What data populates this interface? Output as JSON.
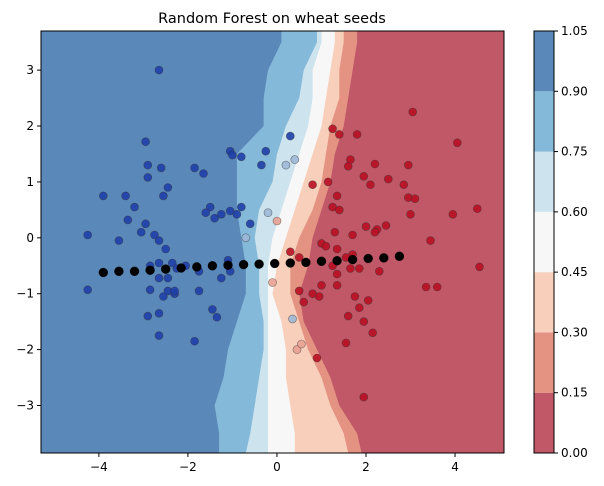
{
  "chart_data": {
    "type": "scatter",
    "title": "Random Forest on wheat seeds",
    "xlim": [
      -5.3,
      5.1
    ],
    "ylim": [
      -3.85,
      3.7
    ],
    "x_ticks": [
      -4,
      -2,
      0,
      2,
      4
    ],
    "x_tick_labels": [
      "−4",
      "−2",
      "0",
      "2",
      "4"
    ],
    "y_ticks": [
      -3,
      -2,
      -1,
      0,
      1,
      2,
      3
    ],
    "y_tick_labels": [
      "−3",
      "−2",
      "−1",
      "0",
      "1",
      "2",
      "3"
    ],
    "grid": false,
    "colorbar": {
      "levels": [
        0.0,
        0.15,
        0.3,
        0.45,
        0.6,
        0.75,
        0.9,
        1.05
      ],
      "tick_labels": [
        "0.00",
        "0.15",
        "0.30",
        "0.45",
        "0.60",
        "0.75",
        "0.90",
        "1.05"
      ],
      "colors": [
        "#c05868",
        "#e49383",
        "#f8cfba",
        "#f7f7f7",
        "#cde3ee",
        "#84b9d9",
        "#5a88b8"
      ]
    },
    "decision_regions": {
      "description_boundaries_y": [
        -3.85,
        -3.5,
        -3,
        -2.5,
        -2,
        -1.5,
        -1,
        -0.5,
        0,
        0.5,
        1,
        1.5,
        2,
        2.5,
        3,
        3.5,
        3.7
      ],
      "b90": [
        -1.3,
        -1.3,
        -1.4,
        -1.2,
        -1.1,
        -0.9,
        -0.7,
        -0.7,
        -0.8,
        -0.9,
        -0.9,
        -0.9,
        -0.3,
        -0.3,
        -0.2,
        0.1,
        0.1
      ],
      "b75": [
        -0.7,
        -0.6,
        -0.5,
        -0.4,
        -0.3,
        -0.3,
        -0.4,
        -0.4,
        -0.5,
        -0.4,
        -0.1,
        0.0,
        0.2,
        0.5,
        0.6,
        0.9,
        0.9
      ],
      "b60": [
        -0.2,
        -0.2,
        -0.2,
        -0.2,
        -0.2,
        -0.2,
        -0.2,
        -0.2,
        -0.1,
        0.1,
        0.3,
        0.5,
        0.7,
        0.8,
        0.8,
        1.0,
        1.0
      ],
      "b45": [
        0.4,
        0.4,
        0.3,
        0.2,
        0.2,
        0.1,
        -0.1,
        0.0,
        0.2,
        0.4,
        0.6,
        0.8,
        1.0,
        1.1,
        1.2,
        1.3,
        1.3
      ],
      "b30": [
        1.6,
        1.5,
        1.2,
        1.0,
        0.7,
        0.5,
        0.3,
        0.3,
        0.5,
        0.8,
        1.0,
        1.1,
        1.2,
        1.4,
        1.4,
        1.5,
        1.5
      ],
      "b15": [
        1.9,
        1.8,
        1.4,
        1.2,
        0.9,
        0.6,
        0.5,
        0.7,
        0.8,
        1.0,
        1.2,
        1.3,
        1.5,
        1.6,
        1.7,
        1.8,
        1.8
      ]
    },
    "series": [
      {
        "color": "#1f3fa8",
        "points": [
          [
            -2.65,
            3.0
          ],
          [
            -2.95,
            1.72
          ],
          [
            -2.9,
            1.3
          ],
          [
            -2.9,
            1.08
          ],
          [
            -2.6,
            1.25
          ],
          [
            -2.45,
            0.9
          ],
          [
            -2.55,
            0.75
          ],
          [
            -3.4,
            0.75
          ],
          [
            -3.9,
            0.75
          ],
          [
            -3.2,
            0.55
          ],
          [
            -3.35,
            0.32
          ],
          [
            -2.95,
            0.25
          ],
          [
            -3.05,
            0.1
          ],
          [
            -2.75,
            0.05
          ],
          [
            -3.55,
            -0.05
          ],
          [
            -2.65,
            -0.05
          ],
          [
            -4.25,
            0.05
          ],
          [
            -2.5,
            -0.2
          ],
          [
            -2.65,
            -0.45
          ],
          [
            -2.85,
            -0.5
          ],
          [
            -2.35,
            -0.45
          ],
          [
            -2.05,
            -0.5
          ],
          [
            -2.25,
            -0.55
          ],
          [
            -2.45,
            -0.72
          ],
          [
            -2.65,
            -0.72
          ],
          [
            -4.25,
            -0.93
          ],
          [
            -2.85,
            -0.93
          ],
          [
            -2.45,
            -0.95
          ],
          [
            -2.55,
            -1.05
          ],
          [
            -2.3,
            -1.0
          ],
          [
            -2.3,
            -0.95
          ],
          [
            -2.65,
            -1.35
          ],
          [
            -2.9,
            -1.4
          ],
          [
            -2.65,
            -1.75
          ],
          [
            -1.85,
            -1.85
          ],
          [
            -1.45,
            -1.28
          ],
          [
            -1.35,
            -1.42
          ],
          [
            -1.75,
            -0.95
          ],
          [
            -1.25,
            -0.72
          ],
          [
            -1.05,
            -0.6
          ],
          [
            -1.75,
            -0.6
          ],
          [
            -1.1,
            -0.4
          ],
          [
            -1.85,
            1.25
          ],
          [
            -1.65,
            1.15
          ],
          [
            -1.5,
            0.55
          ],
          [
            -1.4,
            0.35
          ],
          [
            -1.6,
            0.45
          ],
          [
            -1.25,
            0.42
          ],
          [
            -1.05,
            0.48
          ],
          [
            -1.05,
            1.55
          ],
          [
            -1.0,
            1.48
          ],
          [
            -0.8,
            1.45
          ],
          [
            -0.8,
            0.55
          ],
          [
            -0.9,
            0.42
          ],
          [
            -0.6,
            0.25
          ],
          [
            -0.25,
            1.55
          ],
          [
            -0.35,
            1.3
          ],
          [
            0.3,
            1.82
          ]
        ]
      },
      {
        "color": "#b80f24",
        "points": [
          [
            3.05,
            2.25
          ],
          [
            4.05,
            1.7
          ],
          [
            1.25,
            1.95
          ],
          [
            1.4,
            1.85
          ],
          [
            1.8,
            1.85
          ],
          [
            1.65,
            1.4
          ],
          [
            1.6,
            1.28
          ],
          [
            2.2,
            1.32
          ],
          [
            2.95,
            1.3
          ],
          [
            1.95,
            1.1
          ],
          [
            2.1,
            0.95
          ],
          [
            2.5,
            1.05
          ],
          [
            1.15,
            1.0
          ],
          [
            1.35,
            0.75
          ],
          [
            0.8,
            0.95
          ],
          [
            2.85,
            0.95
          ],
          [
            2.95,
            0.72
          ],
          [
            3.1,
            0.7
          ],
          [
            3.95,
            0.42
          ],
          [
            3.0,
            0.42
          ],
          [
            4.5,
            0.52
          ],
          [
            1.25,
            0.55
          ],
          [
            1.4,
            0.5
          ],
          [
            2.25,
            0.15
          ],
          [
            2.45,
            0.22
          ],
          [
            2.0,
            0.2
          ],
          [
            2.2,
            0.1
          ],
          [
            1.3,
            0.1
          ],
          [
            1.7,
            0.05
          ],
          [
            3.45,
            -0.05
          ],
          [
            1.0,
            -0.1
          ],
          [
            1.1,
            -0.15
          ],
          [
            1.35,
            -0.2
          ],
          [
            1.7,
            -0.3
          ],
          [
            1.55,
            -0.35
          ],
          [
            1.25,
            -0.5
          ],
          [
            1.35,
            -0.65
          ],
          [
            1.65,
            -0.55
          ],
          [
            1.85,
            -0.55
          ],
          [
            2.3,
            -0.6
          ],
          [
            3.35,
            -0.88
          ],
          [
            3.6,
            -0.88
          ],
          [
            4.55,
            -0.52
          ],
          [
            1.0,
            -0.85
          ],
          [
            0.8,
            -1.0
          ],
          [
            0.95,
            -1.05
          ],
          [
            1.35,
            -0.85
          ],
          [
            1.75,
            -1.05
          ],
          [
            1.85,
            -1.25
          ],
          [
            2.05,
            -1.12
          ],
          [
            1.6,
            -1.4
          ],
          [
            1.95,
            -1.5
          ],
          [
            2.15,
            -1.7
          ],
          [
            1.55,
            -1.88
          ],
          [
            1.95,
            -2.85
          ],
          [
            0.9,
            -2.15
          ],
          [
            0.6,
            -1.15
          ],
          [
            0.5,
            -0.35
          ],
          [
            0.3,
            -0.25
          ],
          [
            0.5,
            -0.95
          ]
        ]
      },
      {
        "color": "#9db7d6",
        "points": [
          [
            -0.7,
            0.0
          ],
          [
            0.4,
            1.4
          ],
          [
            0.2,
            1.3
          ],
          [
            -0.2,
            0.45
          ],
          [
            0.35,
            -1.45
          ]
        ]
      },
      {
        "color": "#e8a092",
        "points": [
          [
            0.0,
            0.3
          ],
          [
            0.45,
            -2.0
          ],
          [
            0.55,
            -1.9
          ],
          [
            -0.1,
            -0.8
          ]
        ]
      },
      {
        "color": "#000000",
        "points": [
          [
            -3.9,
            -0.62
          ],
          [
            -3.55,
            -0.6
          ],
          [
            -3.2,
            -0.6
          ],
          [
            -2.85,
            -0.58
          ],
          [
            -2.5,
            -0.56
          ],
          [
            -2.15,
            -0.54
          ],
          [
            -1.8,
            -0.52
          ],
          [
            -1.45,
            -0.5
          ],
          [
            -1.1,
            -0.49
          ],
          [
            -0.75,
            -0.48
          ],
          [
            -0.4,
            -0.47
          ],
          [
            -0.05,
            -0.46
          ],
          [
            0.3,
            -0.45
          ],
          [
            0.65,
            -0.44
          ],
          [
            1.0,
            -0.42
          ],
          [
            1.35,
            -0.41
          ],
          [
            1.7,
            -0.39
          ],
          [
            2.05,
            -0.37
          ],
          [
            2.4,
            -0.36
          ],
          [
            2.75,
            -0.33
          ]
        ]
      }
    ]
  }
}
